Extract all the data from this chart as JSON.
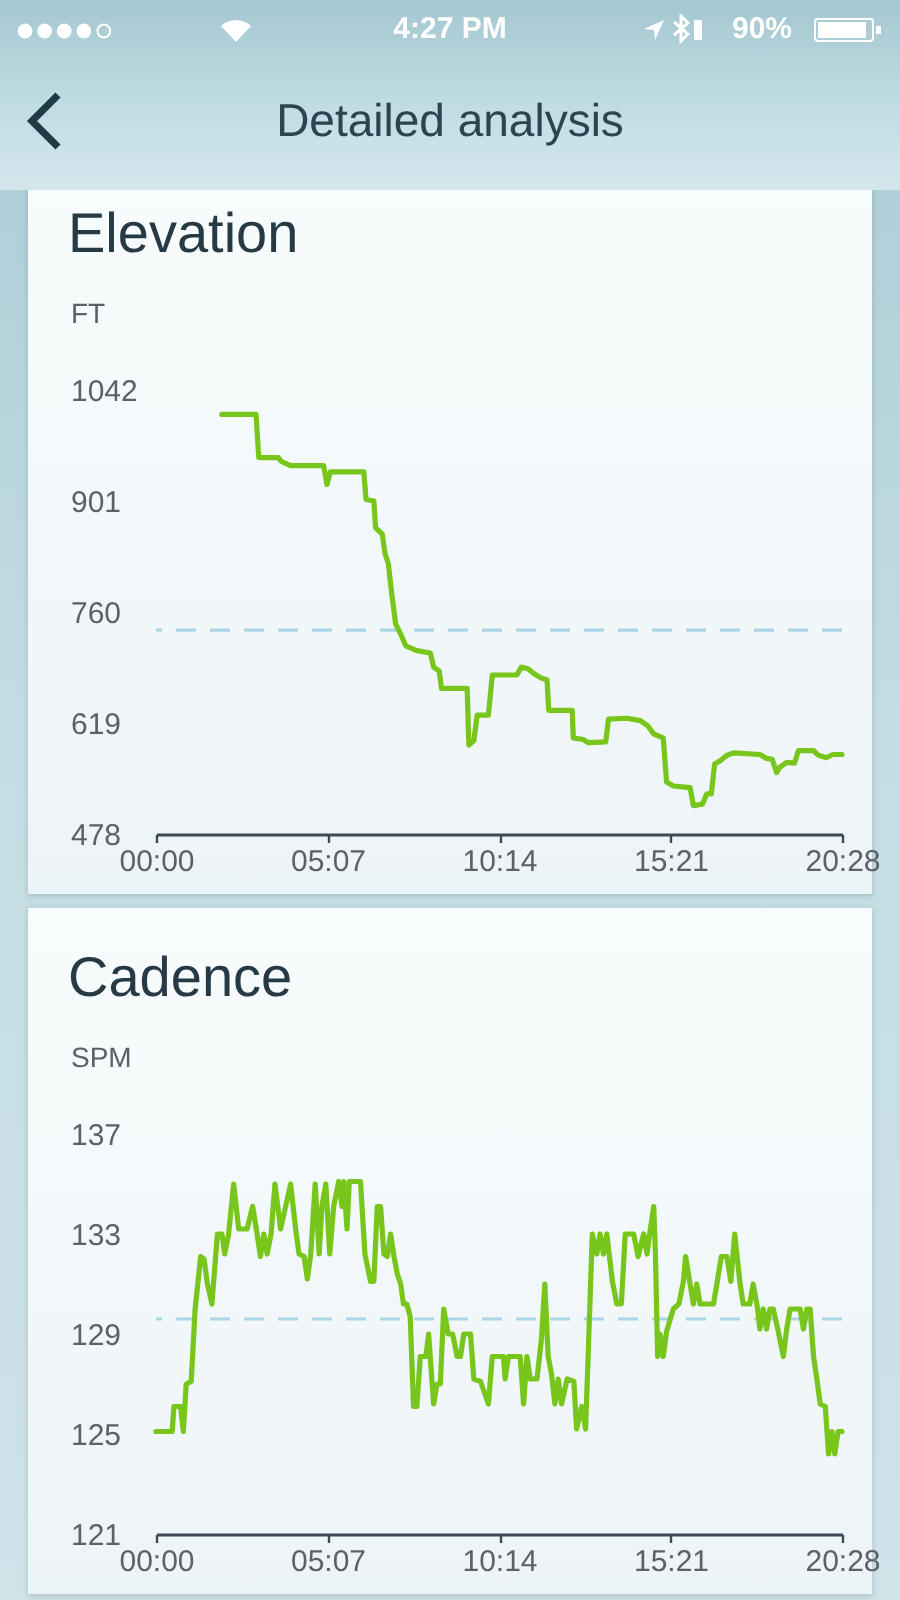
{
  "chart_data": [
    {
      "type": "line",
      "title": "Elevation",
      "ylabel": "FT",
      "annotations": [
        "4:27 PM",
        "90%",
        "Detailed analysis"
      ],
      "x": [
        118,
        179,
        184,
        219,
        225,
        241,
        300,
        306,
        312,
        372,
        376,
        390,
        393,
        405,
        410,
        416,
        422,
        429,
        438,
        447,
        467,
        491,
        497,
        507,
        511,
        557,
        560,
        569,
        575,
        595,
        602,
        646,
        654,
        666,
        676,
        690,
        700,
        703,
        745,
        747,
        765,
        774,
        805,
        810,
        843,
        867,
        881,
        891,
        908,
        914,
        926,
        956,
        962,
        978,
        986,
        994,
        1000,
        1010,
        1022,
        1034,
        1081,
        1093,
        1103,
        1111,
        1117,
        1129,
        1143,
        1150,
        1177,
        1186,
        1200,
        1212,
        1228
      ],
      "series": [
        {
          "color": "#78c51b",
          "values": [
            1011,
            1011,
            956,
            956,
            951,
            946,
            946,
            922,
            938,
            938,
            903,
            901,
            867,
            859,
            834,
            821,
            783,
            745,
            732,
            717,
            711,
            708,
            690,
            685,
            663,
            663,
            591,
            597,
            629,
            629,
            680,
            680,
            690,
            688,
            682,
            676,
            674,
            635,
            635,
            600,
            598,
            594,
            595,
            624,
            625,
            622,
            615,
            605,
            600,
            544,
            539,
            537,
            514,
            516,
            529,
            529,
            567,
            571,
            578,
            581,
            579,
            574,
            573,
            556,
            563,
            569,
            568,
            584,
            584,
            578,
            575,
            579,
            579
          ]
        }
      ],
      "xlim": [
        0,
        1228
      ],
      "xticks": [
        {
          "value": 0,
          "label": "00:00"
        },
        {
          "value": 307,
          "label": "05:07"
        },
        {
          "value": 614,
          "label": "10:14"
        },
        {
          "value": 921,
          "label": "15:21"
        },
        {
          "value": 1228,
          "label": "20:28"
        }
      ],
      "ylim": [
        478,
        1042
      ],
      "yticks": [
        478,
        619,
        760,
        901,
        1042
      ],
      "ref_lines": [
        {
          "axis": "y",
          "value": 737,
          "color": "#a9d5e5",
          "line_style": "dashed"
        }
      ]
    },
    {
      "type": "line",
      "title": "Cadence",
      "ylabel": "SPM",
      "x": [
        0,
        29,
        32,
        44,
        49,
        54,
        63,
        70,
        80,
        86,
        92,
        100,
        110,
        118,
        123,
        130,
        139,
        148,
        163,
        173,
        181,
        187,
        193,
        199,
        206,
        213,
        223,
        232,
        241,
        250,
        256,
        265,
        271,
        277,
        285,
        292,
        297,
        304,
        311,
        318,
        327,
        333,
        336,
        342,
        346,
        366,
        374,
        384,
        390,
        396,
        402,
        408,
        414,
        420,
        426,
        432,
        438,
        443,
        449,
        455,
        461,
        467,
        473,
        483,
        488,
        497,
        503,
        509,
        515,
        523,
        531,
        539,
        545,
        551,
        563,
        569,
        581,
        595,
        602,
        622,
        625,
        631,
        652,
        658,
        664,
        670,
        682,
        690,
        696,
        702,
        708,
        714,
        720,
        726,
        736,
        748,
        753,
        762,
        769,
        774,
        781,
        789,
        795,
        801,
        807,
        817,
        825,
        833,
        840,
        855,
        863,
        873,
        879,
        885,
        891,
        894,
        898,
        902,
        908,
        914,
        926,
        936,
        944,
        948,
        956,
        962,
        968,
        974,
        986,
        998,
        1004,
        1012,
        1022,
        1029,
        1036,
        1045,
        1051,
        1063,
        1069,
        1077,
        1081,
        1087,
        1093,
        1099,
        1105,
        1113,
        1123,
        1129,
        1135,
        1153,
        1159,
        1165,
        1171,
        1177,
        1183,
        1189,
        1198,
        1204,
        1210,
        1215,
        1221,
        1228
      ],
      "series": [
        {
          "color": "#78c51b",
          "values": [
            125.1,
            125.1,
            126.1,
            126.1,
            125.1,
            127.0,
            127.1,
            130.0,
            132.1,
            132.0,
            131.0,
            130.2,
            133.0,
            133.0,
            132.2,
            133.0,
            135.0,
            133.2,
            133.2,
            134.1,
            133.0,
            132.1,
            133.0,
            132.2,
            133.0,
            135.0,
            133.2,
            134.1,
            135.0,
            133.2,
            132.2,
            132.1,
            131.2,
            132.2,
            135.0,
            132.2,
            134.1,
            135.0,
            132.2,
            134.1,
            135.1,
            134.1,
            135.1,
            133.2,
            135.1,
            135.1,
            132.2,
            131.1,
            131.1,
            134.1,
            134.1,
            132.2,
            132.1,
            133.0,
            132.1,
            131.4,
            131.0,
            130.2,
            130.2,
            129.7,
            126.1,
            126.1,
            128.1,
            128.1,
            129.0,
            126.2,
            127.0,
            127.0,
            130.0,
            129.0,
            129.0,
            128.1,
            128.1,
            129.0,
            129.0,
            127.2,
            127.1,
            126.2,
            128.1,
            128.1,
            127.2,
            128.1,
            128.1,
            126.2,
            128.1,
            127.2,
            127.2,
            128.8,
            131.0,
            128.1,
            127.4,
            126.2,
            127.2,
            126.2,
            127.2,
            127.1,
            125.2,
            126.1,
            125.2,
            128.4,
            133.0,
            132.2,
            133.0,
            132.2,
            133.0,
            131.1,
            130.2,
            130.2,
            133.0,
            133.0,
            132.1,
            133.0,
            132.2,
            133.2,
            134.1,
            132.2,
            128.1,
            129.0,
            128.1,
            129.1,
            130.0,
            130.2,
            131.1,
            132.1,
            131.0,
            130.2,
            131.0,
            130.2,
            130.2,
            130.2,
            131.0,
            132.1,
            132.1,
            131.1,
            133.0,
            131.1,
            130.2,
            130.2,
            131.0,
            130.0,
            129.2,
            130.0,
            129.2,
            130.0,
            130.0,
            129.2,
            128.1,
            129.2,
            130.0,
            130.0,
            129.2,
            130.0,
            130.0,
            128.1,
            127.2,
            126.2,
            126.1,
            124.2,
            125.1,
            124.2,
            125.1,
            125.1
          ]
        }
      ],
      "xlim": [
        0,
        1228
      ],
      "xticks": [
        {
          "value": 0,
          "label": "00:00"
        },
        {
          "value": 307,
          "label": "05:07"
        },
        {
          "value": 614,
          "label": "10:14"
        },
        {
          "value": 921,
          "label": "15:21"
        },
        {
          "value": 1228,
          "label": "20:28"
        }
      ],
      "ylim": [
        121,
        137
      ],
      "yticks": [
        121,
        125,
        129,
        133,
        137
      ],
      "ref_lines": [
        {
          "axis": "y",
          "value": 129.6,
          "color": "#a9d5e5",
          "line_style": "dashed"
        }
      ]
    }
  ]
}
